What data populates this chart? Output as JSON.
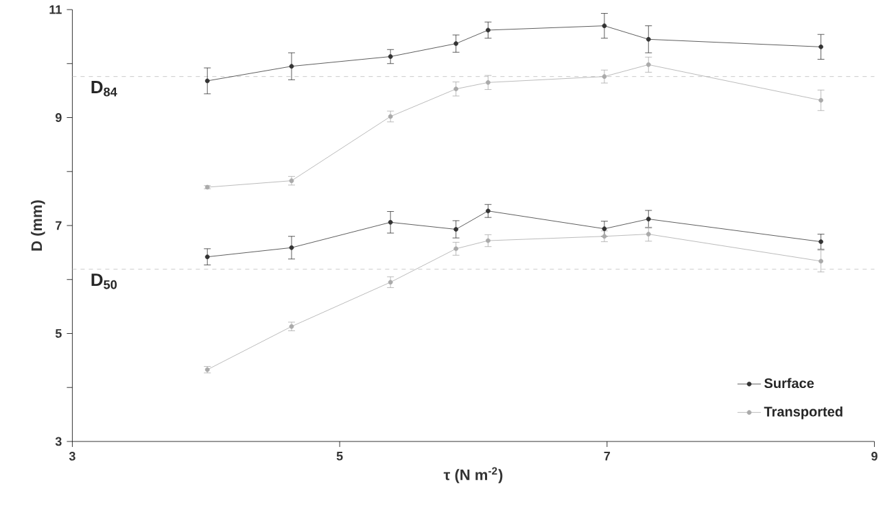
{
  "chart_data": {
    "type": "line",
    "xlabel": "τ (N m$^{-2}$)",
    "ylabel": "D (mm)",
    "xlim": [
      3,
      9
    ],
    "xticks": [
      3,
      5,
      7,
      9
    ],
    "ylim": [
      3,
      11
    ],
    "yticks": [
      3,
      {
        "value": 4,
        "label": null
      },
      5,
      {
        "value": 6,
        "label": null
      },
      7,
      {
        "value": 8,
        "label": null
      },
      9,
      {
        "value": 10,
        "label": null
      },
      11
    ],
    "marker": "circle",
    "line_style": "solid",
    "grid": false,
    "legend": "bottom right",
    "series": [
      {
        "name": "Surface",
        "color": "#333333",
        "x": [
          4.01,
          4.64,
          5.38,
          5.87,
          6.11,
          6.98,
          7.31,
          8.6
        ],
        "values": [
          9.68,
          9.95,
          10.13,
          10.37,
          10.62,
          10.7,
          10.45,
          10.31
        ],
        "errors": [
          0.24,
          0.25,
          0.13,
          0.16,
          0.15,
          0.23,
          0.25,
          0.23
        ]
      },
      {
        "name": "Transported",
        "color": "#aaaaaa",
        "x": [
          4.01,
          4.64,
          5.38,
          5.87,
          6.11,
          6.98,
          7.31,
          8.6
        ],
        "values": [
          7.71,
          7.83,
          9.02,
          9.53,
          9.65,
          9.76,
          9.98,
          9.32
        ],
        "errors": [
          0.03,
          0.08,
          0.1,
          0.13,
          0.13,
          0.12,
          0.14,
          0.19
        ]
      },
      {
        "color": "#333333",
        "x": [
          4.01,
          4.64,
          5.38,
          5.87,
          6.11,
          6.98,
          7.31,
          8.6
        ],
        "values": [
          6.42,
          6.59,
          7.06,
          6.93,
          7.27,
          6.94,
          7.12,
          6.7
        ],
        "errors": [
          0.15,
          0.21,
          0.2,
          0.16,
          0.12,
          0.14,
          0.16,
          0.14
        ]
      },
      {
        "color": "#aaaaaa",
        "x": [
          4.01,
          4.64,
          5.38,
          5.87,
          6.11,
          6.98,
          7.31,
          8.6
        ],
        "values": [
          4.33,
          5.13,
          5.95,
          6.57,
          6.72,
          6.8,
          6.84,
          6.34
        ],
        "errors": [
          0.06,
          0.08,
          0.1,
          0.12,
          0.11,
          0.1,
          0.13,
          0.2
        ]
      }
    ],
    "ref_lines": [
      {
        "axis": "y",
        "value": 9.76,
        "label": "D$_{84}$",
        "color": "#bbbbbb",
        "line_style": "dashed"
      },
      {
        "axis": "y",
        "value": 6.19,
        "label": "D$_{50}$",
        "color": "#bbbbbb",
        "line_style": "dashed"
      }
    ]
  }
}
